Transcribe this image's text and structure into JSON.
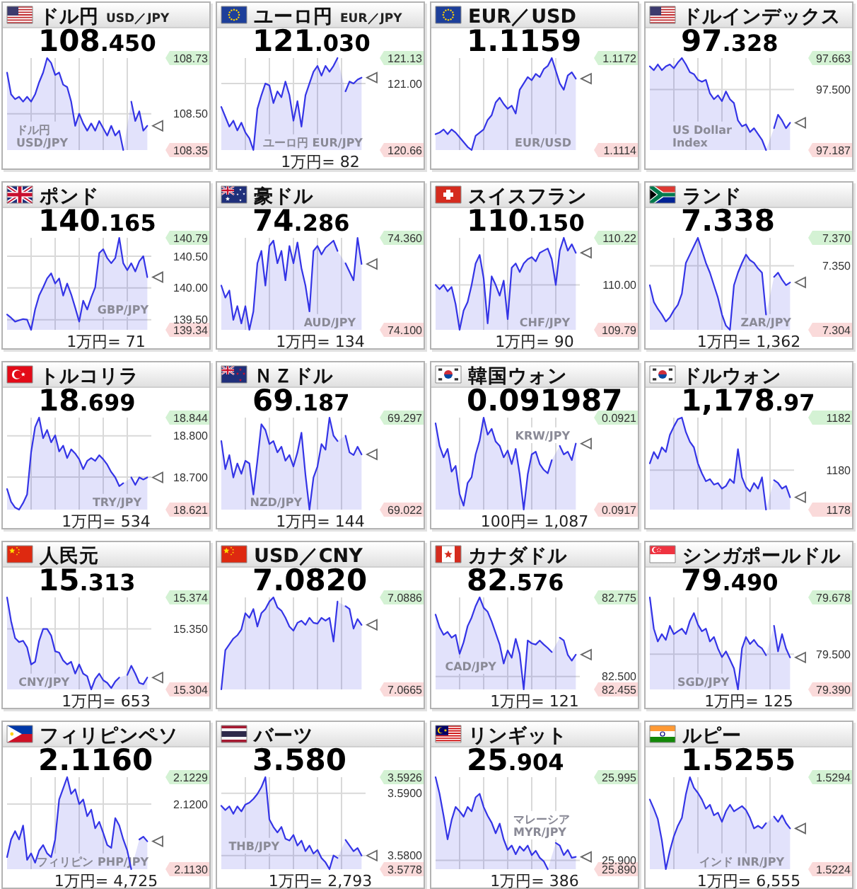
{
  "chart_data": [
    {
      "type": "area",
      "title": "ドル円",
      "subtitle": "USD／JPY",
      "annotations": [
        "108.450"
      ],
      "categories": [
        null,
        null,
        null,
        null,
        null,
        null,
        null,
        null,
        null,
        null,
        null,
        null,
        null,
        null,
        null,
        null,
        null,
        null,
        null,
        null,
        null,
        null,
        null,
        null,
        null,
        null,
        null,
        null,
        null,
        null,
        null,
        null,
        null,
        null,
        null,
        null
      ],
      "series": [
        {
          "name": "ドル円 USD/JPY",
          "color": "#3434e6",
          "values": [
            108.67,
            108.58,
            108.56,
            108.57,
            108.55,
            108.57,
            108.55,
            108.58,
            108.63,
            108.67,
            108.73,
            108.71,
            108.66,
            108.67,
            108.62,
            108.61,
            108.55,
            108.45,
            108.5,
            108.46,
            108.43,
            108.46,
            108.43,
            108.47,
            108.44,
            108.41,
            108.45,
            108.41,
            108.43,
            108.35,
            null,
            108.55,
            108.47,
            108.51,
            108.43,
            108.45
          ]
        }
      ],
      "ylim": [
        108.35,
        108.73
      ],
      "yticks": [
        108.35,
        {
          "value": 108.5,
          "label": "108.50"
        },
        108.73
      ],
      "grid": true,
      "tick_labels": "y"
    },
    {
      "type": "area",
      "title": "ユーロ円",
      "subtitle": "EUR／JPY",
      "annotations": [
        "121.030",
        "1万円= 82"
      ],
      "categories": [
        null,
        null,
        null,
        null,
        null,
        null,
        null,
        null,
        null,
        null,
        null,
        null,
        null,
        null,
        null,
        null,
        null,
        null,
        null,
        null,
        null,
        null,
        null,
        null,
        null,
        null,
        null,
        null,
        null,
        null,
        null,
        null,
        null,
        null,
        null,
        null
      ],
      "series": [
        {
          "name": "ユーロ円 EUR/JPY",
          "color": "#3434e6",
          "values": [
            120.88,
            120.83,
            120.78,
            120.81,
            120.76,
            120.8,
            120.75,
            120.72,
            120.66,
            120.87,
            120.94,
            121.0,
            120.99,
            120.9,
            120.96,
            120.93,
            121.01,
            120.94,
            120.81,
            120.91,
            120.78,
            120.94,
            121.0,
            121.06,
            121.09,
            121.04,
            121.09,
            121.06,
            121.09,
            121.13,
            null,
            120.96,
            121.01,
            121.0,
            121.02,
            121.03
          ]
        }
      ],
      "ylim": [
        120.66,
        121.13
      ],
      "yticks": [
        120.66,
        {
          "value": 121,
          "label": "121.00"
        },
        121.13
      ],
      "grid": true,
      "tick_labels": "y"
    },
    {
      "type": "area",
      "title": "EUR／USD",
      "annotations": [
        "1.1159"
      ],
      "categories": [
        null,
        null,
        null,
        null,
        null,
        null,
        null,
        null,
        null,
        null,
        null,
        null,
        null,
        null,
        null,
        null,
        null,
        null,
        null,
        null,
        null,
        null,
        null,
        null,
        null,
        null,
        null,
        null,
        null,
        null,
        null,
        null,
        null,
        null,
        null,
        null
      ],
      "series": [
        {
          "name": "EUR/USD",
          "color": "#3434e6",
          "values": [
            1.1124,
            1.1125,
            1.1127,
            1.1124,
            1.1127,
            1.1125,
            1.1122,
            1.1119,
            1.1116,
            1.1114,
            1.1123,
            1.1125,
            1.1127,
            1.1133,
            1.1136,
            1.1144,
            1.1147,
            1.1143,
            1.114,
            1.1142,
            1.1137,
            1.1152,
            1.1156,
            1.116,
            1.1158,
            1.1162,
            1.116,
            1.1165,
            1.1167,
            1.1172,
            1.1164,
            1.1156,
            1.1152,
            1.1161,
            1.1163,
            1.1159
          ]
        }
      ],
      "ylim": [
        1.1114,
        1.1172
      ],
      "yticks": [
        1.1114,
        1.1172
      ],
      "grid": true,
      "tick_labels": "y"
    },
    {
      "type": "area",
      "title": "ドルインデックス",
      "annotations": [
        "97.328"
      ],
      "categories": [
        null,
        null,
        null,
        null,
        null,
        null,
        null,
        null,
        null,
        null,
        null,
        null,
        null,
        null,
        null,
        null,
        null,
        null,
        null,
        null,
        null,
        null,
        null,
        null,
        null,
        null,
        null,
        null,
        null,
        null,
        null,
        null,
        null,
        null,
        null,
        null
      ],
      "series": [
        {
          "name": "US Dollar Index",
          "color": "#3434e6",
          "values": [
            97.62,
            97.6,
            97.63,
            97.6,
            97.62,
            97.63,
            97.61,
            97.64,
            97.663,
            97.63,
            97.59,
            97.58,
            97.55,
            97.54,
            97.55,
            97.48,
            97.45,
            97.47,
            97.44,
            97.49,
            97.45,
            97.43,
            97.34,
            97.31,
            97.32,
            97.28,
            97.3,
            97.27,
            97.24,
            97.187,
            null,
            97.3,
            97.37,
            97.34,
            97.3,
            97.328
          ]
        }
      ],
      "ylim": [
        97.187,
        97.663
      ],
      "yticks": [
        97.187,
        {
          "value": 97.5,
          "label": "97.500"
        },
        97.663
      ],
      "grid": true,
      "tick_labels": "y"
    },
    {
      "type": "area",
      "title": "ポンド",
      "annotations": [
        "140.165",
        "1万円= 71"
      ],
      "categories": [
        null,
        null,
        null,
        null,
        null,
        null,
        null,
        null,
        null,
        null,
        null,
        null,
        null,
        null,
        null,
        null,
        null,
        null,
        null,
        null,
        null,
        null,
        null,
        null,
        null,
        null,
        null,
        null,
        null,
        null,
        null,
        null,
        null,
        null,
        null,
        null
      ],
      "series": [
        {
          "name": "GBP/JPY",
          "color": "#3434e6",
          "values": [
            139.58,
            139.53,
            139.47,
            139.49,
            139.51,
            139.5,
            139.34,
            139.66,
            139.88,
            140.01,
            140.15,
            140.23,
            140.07,
            140.15,
            139.88,
            140.07,
            139.9,
            139.69,
            139.47,
            139.8,
            139.66,
            139.85,
            140.01,
            140.55,
            140.61,
            140.47,
            140.39,
            140.47,
            140.79,
            140.39,
            140.28,
            140.39,
            140.26,
            140.42,
            140.5,
            140.17
          ]
        }
      ],
      "ylim": [
        139.34,
        140.79
      ],
      "yticks": [
        139.34,
        {
          "value": 139.5,
          "label": "139.50"
        },
        {
          "value": 140,
          "label": "140.00"
        },
        {
          "value": 140.5,
          "label": "140.50"
        },
        140.79
      ],
      "grid": true,
      "tick_labels": "y"
    },
    {
      "type": "area",
      "title": "豪ドル",
      "annotations": [
        "74.286",
        "1万円= 134"
      ],
      "categories": [
        null,
        null,
        null,
        null,
        null,
        null,
        null,
        null,
        null,
        null,
        null,
        null,
        null,
        null,
        null,
        null,
        null,
        null,
        null,
        null,
        null,
        null,
        null,
        null,
        null,
        null,
        null,
        null,
        null,
        null,
        null,
        null,
        null,
        null,
        null,
        null
      ],
      "series": [
        {
          "name": "AUD/JPY",
          "color": "#3434e6",
          "values": [
            74.225,
            74.191,
            74.211,
            74.128,
            74.167,
            74.118,
            74.167,
            74.1,
            74.152,
            74.288,
            74.323,
            74.225,
            74.337,
            74.352,
            74.288,
            74.323,
            74.24,
            74.337,
            74.288,
            74.347,
            74.274,
            74.225,
            74.152,
            74.323,
            74.337,
            74.313,
            74.332,
            74.342,
            74.352,
            74.323,
            null,
            74.288,
            74.264,
            74.24,
            74.36,
            74.286
          ]
        }
      ],
      "ylim": [
        74.1,
        74.36
      ],
      "yticks": [
        {
          "value": 74.1,
          "label": "74.100"
        },
        {
          "value": 74.36,
          "label": "74.360"
        }
      ],
      "grid": true,
      "tick_labels": "y"
    },
    {
      "type": "area",
      "title": "スイスフラン",
      "annotations": [
        "110.150",
        "1万円= 90"
      ],
      "categories": [
        null,
        null,
        null,
        null,
        null,
        null,
        null,
        null,
        null,
        null,
        null,
        null,
        null,
        null,
        null,
        null,
        null,
        null,
        null,
        null,
        null,
        null,
        null,
        null,
        null,
        null,
        null,
        null,
        null,
        null,
        null,
        null,
        null,
        null,
        null,
        null
      ],
      "series": [
        {
          "name": "CHF/JPY",
          "color": "#3434e6",
          "values": [
            110.0,
            109.98,
            110.0,
            109.97,
            109.99,
            109.91,
            109.79,
            109.88,
            109.92,
            110.0,
            110.1,
            110.14,
            110.03,
            109.82,
            110.04,
            110.0,
            109.95,
            110.02,
            109.84,
            110.08,
            110.1,
            110.06,
            110.1,
            110.12,
            110.13,
            110.11,
            110.15,
            110.16,
            110.17,
            110.12,
            110.0,
            110.16,
            110.22,
            110.16,
            110.19,
            110.15
          ]
        }
      ],
      "ylim": [
        109.79,
        110.22
      ],
      "yticks": [
        109.79,
        {
          "value": 110,
          "label": "110.00"
        },
        110.22
      ],
      "grid": true,
      "tick_labels": "y"
    },
    {
      "type": "area",
      "title": "ランド",
      "annotations": [
        "7.338",
        "1万円= 1,362"
      ],
      "categories": [
        null,
        null,
        null,
        null,
        null,
        null,
        null,
        null,
        null,
        null,
        null,
        null,
        null,
        null,
        null,
        null,
        null,
        null,
        null,
        null,
        null,
        null,
        null,
        null,
        null,
        null,
        null,
        null,
        null,
        null,
        null,
        null,
        null,
        null,
        null,
        null
      ],
      "series": [
        {
          "name": "ZAR/JPY",
          "color": "#3434e6",
          "values": [
            7.336,
            7.324,
            7.319,
            7.315,
            7.31,
            7.313,
            7.318,
            7.322,
            7.33,
            7.352,
            7.358,
            7.364,
            7.37,
            7.361,
            7.352,
            7.345,
            7.336,
            7.327,
            7.315,
            7.307,
            7.304,
            7.336,
            7.345,
            7.352,
            7.358,
            7.354,
            7.352,
            7.348,
            7.345,
            7.315,
            null,
            7.342,
            7.345,
            7.34,
            7.336,
            7.338
          ]
        }
      ],
      "ylim": [
        7.304,
        7.37
      ],
      "yticks": [
        7.304,
        {
          "value": 7.35,
          "label": "7.350"
        },
        {
          "value": 7.37,
          "label": "7.370"
        }
      ],
      "grid": true,
      "tick_labels": "y"
    },
    {
      "type": "area",
      "title": "トルコリラ",
      "annotations": [
        "18.699",
        "1万円= 534"
      ],
      "categories": [
        null,
        null,
        null,
        null,
        null,
        null,
        null,
        null,
        null,
        null,
        null,
        null,
        null,
        null,
        null,
        null,
        null,
        null,
        null,
        null,
        null,
        null,
        null,
        null,
        null,
        null,
        null,
        null,
        null,
        null,
        null,
        null,
        null,
        null,
        null,
        null
      ],
      "series": [
        {
          "name": "TRY/JPY",
          "color": "#3434e6",
          "values": [
            18.671,
            18.64,
            18.626,
            18.621,
            18.637,
            18.658,
            18.76,
            18.821,
            18.844,
            18.794,
            18.814,
            18.784,
            18.801,
            18.762,
            18.776,
            18.746,
            18.767,
            18.757,
            18.743,
            18.719,
            18.739,
            18.746,
            18.739,
            18.753,
            18.743,
            18.73,
            18.712,
            18.699,
            18.678,
            18.685,
            null,
            18.699,
            18.681,
            18.699,
            18.694,
            18.699
          ]
        }
      ],
      "ylim": [
        18.621,
        18.844
      ],
      "yticks": [
        18.621,
        {
          "value": 18.7,
          "label": "18.700"
        },
        {
          "value": 18.8,
          "label": "18.800"
        },
        18.844
      ],
      "grid": true,
      "tick_labels": "y"
    },
    {
      "type": "area",
      "title": "ＮＺドル",
      "annotations": [
        "69.187",
        "1万円= 144"
      ],
      "categories": [
        null,
        null,
        null,
        null,
        null,
        null,
        null,
        null,
        null,
        null,
        null,
        null,
        null,
        null,
        null,
        null,
        null,
        null,
        null,
        null,
        null,
        null,
        null,
        null,
        null,
        null,
        null,
        null,
        null,
        null,
        null,
        null,
        null,
        null,
        null,
        null
      ],
      "series": [
        {
          "name": "NZD/JPY",
          "color": "#3434e6",
          "values": [
            69.227,
            69.143,
            69.185,
            69.118,
            69.16,
            69.129,
            69.168,
            69.16,
            69.067,
            69.168,
            69.277,
            69.26,
            69.218,
            69.227,
            69.193,
            69.21,
            69.168,
            69.185,
            69.151,
            69.193,
            69.252,
            69.126,
            69.022,
            69.118,
            69.151,
            69.218,
            69.201,
            69.297,
            69.243,
            69.227,
            null,
            69.243,
            69.193,
            69.185,
            69.21,
            69.187
          ]
        }
      ],
      "ylim": [
        69.022,
        69.297
      ],
      "yticks": [
        69.022,
        69.297
      ],
      "grid": true,
      "tick_labels": "y"
    },
    {
      "type": "area",
      "title": "韓国ウォン",
      "annotations": [
        "0.091987",
        "100円= 1,087"
      ],
      "categories": [
        null,
        null,
        null,
        null,
        null,
        null,
        null,
        null,
        null,
        null,
        null,
        null,
        null,
        null,
        null,
        null,
        null,
        null,
        null,
        null,
        null,
        null,
        null,
        null,
        null,
        null,
        null,
        null,
        null,
        null,
        null,
        null,
        null,
        null,
        null,
        null
      ],
      "series": [
        {
          "name": "KRW/JPY",
          "color": "#3434e6",
          "values": [
            0.092075,
            0.091977,
            0.091927,
            0.091964,
            0.091865,
            0.09189,
            0.091767,
            0.091717,
            0.091816,
            0.091841,
            0.09194,
            0.092001,
            0.0921,
            0.092026,
            0.092051,
            0.091996,
            0.091977,
            0.091927,
            0.091957,
            0.091898,
            0.091964,
            0.091853,
            0.0917,
            0.091853,
            0.09194,
            0.091952,
            0.091898,
            0.091873,
            0.091858,
            0.091915,
            null,
            0.091977,
            0.09194,
            0.091952,
            0.091915,
            0.091987
          ]
        }
      ],
      "ylim": [
        0.0917,
        0.0921
      ],
      "yticks": [
        0.0917,
        0.0921
      ],
      "grid": true,
      "tick_labels": "y"
    },
    {
      "type": "area",
      "title": "ドルウォン",
      "annotations": [
        "1,178.97"
      ],
      "categories": [
        null,
        null,
        null,
        null,
        null,
        null,
        null,
        null,
        null,
        null,
        null,
        null,
        null,
        null,
        null,
        null,
        null,
        null,
        null,
        null,
        null,
        null,
        null,
        null,
        null,
        null,
        null,
        null,
        null,
        null,
        null,
        null,
        null,
        null,
        null,
        null
      ],
      "series": [
        {
          "color": "#3434e6",
          "values": [
            1180.26,
            1180.69,
            1180.44,
            1180.87,
            1180.69,
            1181.34,
            1181.66,
            1181.94,
            1182,
            1181.45,
            1181.08,
            1180.87,
            1180.26,
            1179.88,
            1179.58,
            1179.66,
            1179.45,
            1179.51,
            1179.3,
            1179.4,
            1179.66,
            1179.51,
            1180.8,
            1179.73,
            1179.36,
            1179.19,
            1179.51,
            1179.3,
            1179.73,
            1178.5,
            null,
            1179.62,
            1179.51,
            1179.3,
            1179.4,
            1178.97
          ]
        }
      ],
      "ylim": [
        1178.5,
        1182
      ],
      "yticks": [
        {
          "value": 1178.5,
          "label": "1178"
        },
        1180,
        1182
      ],
      "grid": true,
      "tick_labels": "y"
    },
    {
      "type": "area",
      "title": "人民元",
      "annotations": [
        "15.313",
        "1万円= 653"
      ],
      "categories": [
        null,
        null,
        null,
        null,
        null,
        null,
        null,
        null,
        null,
        null,
        null,
        null,
        null,
        null,
        null,
        null,
        null,
        null,
        null,
        null,
        null,
        null,
        null,
        null,
        null,
        null,
        null,
        null,
        null,
        null,
        null,
        null,
        null,
        null,
        null,
        null
      ],
      "series": [
        {
          "name": "CNY/JPY",
          "color": "#3434e6",
          "values": [
            15.374,
            15.356,
            15.343,
            15.34,
            15.341,
            15.336,
            15.323,
            15.325,
            15.341,
            15.35,
            15.35,
            15.345,
            15.333,
            15.332,
            15.326,
            15.323,
            15.325,
            15.316,
            15.323,
            15.316,
            15.314,
            15.304,
            15.312,
            15.316,
            15.311,
            15.309,
            15.305,
            15.31,
            15.313,
            null,
            15.315,
            15.322,
            15.316,
            15.309,
            15.308,
            15.313
          ]
        }
      ],
      "ylim": [
        15.304,
        15.374
      ],
      "yticks": [
        15.304,
        {
          "value": 15.35,
          "label": "15.350"
        },
        15.374
      ],
      "grid": true,
      "tick_labels": "y"
    },
    {
      "type": "area",
      "title": "USD／CNY",
      "annotations": [
        "7.0820"
      ],
      "categories": [
        null,
        null,
        null,
        null,
        null,
        null,
        null,
        null,
        null,
        null,
        null,
        null,
        null,
        null,
        null,
        null,
        null,
        null,
        null,
        null,
        null,
        null,
        null,
        null,
        null,
        null,
        null,
        null,
        null,
        null,
        null,
        null,
        null,
        null,
        null,
        null
      ],
      "series": [
        {
          "color": "#3434e6",
          "values": [
            7.0665,
            7.0759,
            7.0773,
            7.0787,
            7.0795,
            7.0809,
            7.0848,
            7.0837,
            7.0858,
            7.0816,
            7.0848,
            7.0858,
            7.0876,
            7.0886,
            7.0862,
            7.0854,
            7.0837,
            7.0816,
            7.0806,
            7.0825,
            7.083,
            7.082,
            7.0837,
            7.0825,
            7.0823,
            7.0837,
            7.083,
            7.0837,
            7.078,
            7.0876,
            null,
            7.0865,
            7.0858,
            7.0811,
            7.0834,
            7.082
          ]
        }
      ],
      "ylim": [
        7.0665,
        7.0886
      ],
      "yticks": [
        7.0665,
        7.0886
      ],
      "grid": true,
      "tick_labels": "y"
    },
    {
      "type": "area",
      "title": "カナダドル",
      "annotations": [
        "82.576",
        "1万円= 121"
      ],
      "categories": [
        null,
        null,
        null,
        null,
        null,
        null,
        null,
        null,
        null,
        null,
        null,
        null,
        null,
        null,
        null,
        null,
        null,
        null,
        null,
        null,
        null,
        null,
        null,
        null,
        null,
        null,
        null,
        null,
        null,
        null,
        null,
        null,
        null,
        null,
        null,
        null
      ],
      "series": [
        {
          "name": "CAD/JPY",
          "color": "#3434e6",
          "values": [
            82.715,
            82.671,
            82.645,
            82.655,
            82.635,
            82.645,
            82.579,
            82.619,
            82.675,
            82.705,
            82.745,
            82.775,
            82.739,
            82.725,
            82.691,
            82.651,
            82.611,
            82.545,
            82.591,
            82.565,
            82.631,
            82.579,
            82.455,
            82.625,
            82.615,
            82.611,
            82.625,
            82.611,
            82.599,
            82.585,
            null,
            82.635,
            82.625,
            82.575,
            82.555,
            82.576
          ]
        }
      ],
      "ylim": [
        82.455,
        82.775
      ],
      "yticks": [
        82.455,
        {
          "value": 82.5,
          "label": "82.500"
        },
        82.775
      ],
      "grid": true,
      "tick_labels": "y"
    },
    {
      "type": "area",
      "title": "シンガポールドル",
      "annotations": [
        "79.490",
        "1万円= 125"
      ],
      "categories": [
        null,
        null,
        null,
        null,
        null,
        null,
        null,
        null,
        null,
        null,
        null,
        null,
        null,
        null,
        null,
        null,
        null,
        null,
        null,
        null,
        null,
        null,
        null,
        null,
        null,
        null,
        null,
        null,
        null,
        null,
        null,
        null,
        null,
        null,
        null,
        null
      ],
      "series": [
        {
          "name": "SGD/JPY",
          "color": "#3434e6",
          "values": [
            79.678,
            79.58,
            79.54,
            79.563,
            79.545,
            79.589,
            79.563,
            79.572,
            79.58,
            79.563,
            79.604,
            79.629,
            79.593,
            79.572,
            79.58,
            79.54,
            79.554,
            79.518,
            79.491,
            79.509,
            79.483,
            79.456,
            79.39,
            79.518,
            79.554,
            79.532,
            79.545,
            79.527,
            79.518,
            79.497,
            null,
            79.589,
            79.509,
            79.563,
            79.518,
            79.49
          ]
        }
      ],
      "ylim": [
        79.39,
        79.678
      ],
      "yticks": [
        {
          "value": 79.39,
          "label": "79.390"
        },
        {
          "value": 79.5,
          "label": "79.500"
        },
        79.678
      ],
      "grid": true,
      "tick_labels": "y"
    },
    {
      "type": "area",
      "title": "フィリピンペソ",
      "annotations": [
        "2.1160",
        "1万円= 4,725"
      ],
      "categories": [
        null,
        null,
        null,
        null,
        null,
        null,
        null,
        null,
        null,
        null,
        null,
        null,
        null,
        null,
        null,
        null,
        null,
        null,
        null,
        null,
        null,
        null,
        null,
        null,
        null,
        null,
        null,
        null,
        null,
        null,
        null,
        null,
        null,
        null,
        null,
        null
      ],
      "series": [
        {
          "name": "フィリピン PHP/JPY",
          "color": "#3434e6",
          "values": [
            2.1143,
            2.1162,
            2.1171,
            2.1162,
            2.1177,
            2.114,
            2.1147,
            2.1137,
            2.115,
            2.1156,
            2.1147,
            2.1143,
            2.1162,
            2.1205,
            2.1217,
            2.1229,
            2.1211,
            2.1216,
            2.12,
            2.1205,
            2.1187,
            2.1194,
            2.1174,
            2.1181,
            2.1169,
            2.1156,
            2.1153,
            2.1185,
            2.1177,
            2.1162,
            2.115,
            2.113,
            null,
            2.1162,
            2.1165,
            2.116
          ]
        }
      ],
      "ylim": [
        2.113,
        2.1229
      ],
      "yticks": [
        {
          "value": 2.113,
          "label": "2.1130"
        },
        {
          "value": 2.12,
          "label": "2.1200"
        },
        2.1229
      ],
      "grid": true,
      "tick_labels": "y"
    },
    {
      "type": "area",
      "title": "バーツ",
      "annotations": [
        "3.580",
        "1万円= 2,793"
      ],
      "categories": [
        null,
        null,
        null,
        null,
        null,
        null,
        null,
        null,
        null,
        null,
        null,
        null,
        null,
        null,
        null,
        null,
        null,
        null,
        null,
        null,
        null,
        null,
        null,
        null,
        null,
        null,
        null,
        null,
        null,
        null,
        null,
        null,
        null,
        null,
        null,
        null
      ],
      "series": [
        {
          "name": "THB/JPY",
          "color": "#3434e6",
          "values": [
            3.588,
            3.5873,
            3.5879,
            3.5867,
            3.5879,
            3.5871,
            3.5882,
            3.5885,
            3.5891,
            3.5899,
            3.591,
            3.5926,
            3.5858,
            3.5846,
            3.5837,
            3.5846,
            3.5827,
            3.5824,
            3.5833,
            3.5816,
            3.5824,
            3.5807,
            3.5816,
            3.5803,
            3.5809,
            3.5796,
            3.5789,
            3.5778,
            3.58,
            3.5796,
            null,
            3.5825,
            3.5816,
            3.5807,
            3.5812,
            3.58
          ]
        }
      ],
      "ylim": [
        3.5778,
        3.5926
      ],
      "yticks": [
        3.5778,
        {
          "value": 3.58,
          "label": "3.5800"
        },
        {
          "value": 3.59,
          "label": "3.5900"
        },
        3.5926
      ],
      "grid": true,
      "tick_labels": "y"
    },
    {
      "type": "area",
      "title": "リンギット",
      "annotations": [
        "25.904",
        "1万円= 386"
      ],
      "categories": [
        null,
        null,
        null,
        null,
        null,
        null,
        null,
        null,
        null,
        null,
        null,
        null,
        null,
        null,
        null,
        null,
        null,
        null,
        null,
        null,
        null,
        null,
        null,
        null,
        null,
        null,
        null,
        null,
        null,
        null,
        null,
        null,
        null,
        null,
        null,
        null
      ],
      "series": [
        {
          "name": "マレーシア MYR/JPY",
          "color": "#3434e6",
          "values": [
            25.995,
            25.976,
            25.951,
            25.924,
            25.946,
            25.961,
            25.956,
            25.95,
            25.961,
            25.956,
            25.972,
            25.976,
            25.961,
            25.951,
            25.943,
            25.931,
            25.942,
            25.924,
            25.912,
            25.917,
            25.907,
            25.916,
            25.911,
            25.917,
            25.906,
            25.911,
            25.903,
            25.899,
            25.89,
            null,
            25.92,
            25.917,
            25.906,
            25.912,
            25.903,
            25.904
          ]
        }
      ],
      "ylim": [
        25.89,
        25.995
      ],
      "yticks": [
        {
          "value": 25.89,
          "label": "25.890"
        },
        {
          "value": 25.9,
          "label": "25.900"
        },
        25.995
      ],
      "grid": true,
      "tick_labels": "y"
    },
    {
      "type": "area",
      "title": "ルピー",
      "annotations": [
        "1.5255",
        "1万円= 6,555"
      ],
      "categories": [
        null,
        null,
        null,
        null,
        null,
        null,
        null,
        null,
        null,
        null,
        null,
        null,
        null,
        null,
        null,
        null,
        null,
        null,
        null,
        null,
        null,
        null,
        null,
        null,
        null,
        null,
        null,
        null,
        null,
        null,
        null,
        null,
        null,
        null,
        null,
        null
      ],
      "series": [
        {
          "name": "インド INR/JPY",
          "color": "#3434e6",
          "values": [
            1.5277,
            1.527,
            1.5262,
            1.5246,
            1.5224,
            1.5238,
            1.5249,
            1.5257,
            1.5263,
            1.5281,
            1.5294,
            1.5286,
            1.5282,
            1.5277,
            1.527,
            1.5273,
            1.5265,
            1.5267,
            1.526,
            1.5268,
            1.5273,
            1.5268,
            1.527,
            1.5272,
            1.5269,
            1.5263,
            1.5255,
            1.5257,
            1.5255,
            1.5259,
            null,
            1.5264,
            1.526,
            1.5265,
            1.5259,
            1.5255
          ]
        }
      ],
      "ylim": [
        1.5224,
        1.5294
      ],
      "yticks": [
        1.5224,
        1.5294
      ],
      "grid": true,
      "tick_labels": "y"
    }
  ]
}
